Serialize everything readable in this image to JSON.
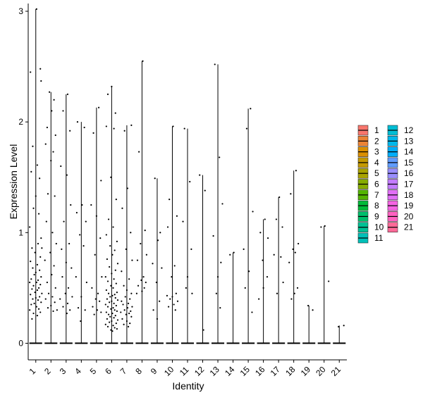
{
  "chart_data": {
    "type": "violin",
    "xlabel": "Identity",
    "ylabel": "Expression Level",
    "categories": [
      "1",
      "2",
      "3",
      "4",
      "5",
      "6",
      "7",
      "8",
      "9",
      "10",
      "11",
      "12",
      "13",
      "14",
      "15",
      "16",
      "17",
      "18",
      "19",
      "20",
      "21"
    ],
    "ylim": [
      -0.15,
      3.07
    ],
    "yticks": [
      0,
      1,
      2,
      3
    ],
    "grid": false,
    "legend_position": "right",
    "legend_columns": 2,
    "colors": [
      "#F8766D",
      "#EB8335",
      "#DA8F00",
      "#C49A00",
      "#A9A400",
      "#86AC00",
      "#53B400",
      "#00BA38",
      "#00BE6C",
      "#00C094",
      "#00C0B8",
      "#00BDD4",
      "#00B7EB",
      "#00ADFA",
      "#619CFF",
      "#9A8EFF",
      "#C37CFF",
      "#E16EF7",
      "#F564E3",
      "#FF62C1",
      "#FF6A98"
    ],
    "max_values": [
      3.02,
      2.27,
      2.25,
      2.0,
      2.13,
      2.32,
      1.97,
      2.55,
      1.49,
      1.96,
      1.94,
      1.52,
      2.52,
      0.82,
      2.12,
      1.12,
      1.32,
      1.56,
      0.34,
      1.06,
      0.16
    ],
    "points": [
      [
        [
          0.05,
          3.02
        ],
        [
          0.3,
          2.48
        ],
        [
          -0.35,
          2.45
        ],
        [
          0.35,
          2.37
        ],
        [
          -0.2,
          1.78
        ],
        [
          0.1,
          1.61
        ],
        [
          -0.3,
          1.55
        ],
        [
          0.25,
          1.49
        ],
        [
          0.0,
          1.33
        ],
        [
          -0.15,
          1.22
        ],
        [
          0.2,
          1.17
        ],
        [
          -0.4,
          1.05
        ],
        [
          0.35,
          0.95
        ],
        [
          0.15,
          0.9
        ],
        [
          -0.25,
          0.86
        ],
        [
          0.4,
          0.86
        ],
        [
          -0.05,
          0.82
        ],
        [
          0.3,
          0.78
        ],
        [
          -0.35,
          0.74
        ],
        [
          0.1,
          0.71
        ],
        [
          -0.2,
          0.68
        ],
        [
          0.25,
          0.66
        ],
        [
          0.0,
          0.64
        ],
        [
          -0.1,
          0.62
        ],
        [
          0.35,
          0.6
        ],
        [
          -0.3,
          0.58
        ],
        [
          0.15,
          0.57
        ],
        [
          0.05,
          0.55
        ],
        [
          -0.4,
          0.55
        ],
        [
          0.3,
          0.53
        ],
        [
          -0.15,
          0.52
        ],
        [
          0.2,
          0.5
        ],
        [
          -0.25,
          0.49
        ],
        [
          0.1,
          0.48
        ],
        [
          -0.05,
          0.46
        ],
        [
          0.4,
          0.45
        ],
        [
          -0.35,
          0.44
        ],
        [
          0.25,
          0.42
        ],
        [
          0.0,
          0.41
        ],
        [
          -0.2,
          0.4
        ],
        [
          0.15,
          0.39
        ],
        [
          0.35,
          0.37
        ],
        [
          -0.1,
          0.36
        ],
        [
          -0.3,
          0.35
        ],
        [
          0.05,
          0.33
        ],
        [
          0.2,
          0.31
        ],
        [
          -0.4,
          0.3
        ],
        [
          0.3,
          0.28
        ],
        [
          -0.15,
          0.27
        ],
        [
          0.1,
          0.25
        ],
        [
          -0.25,
          0.22
        ]
      ],
      [
        [
          -0.1,
          2.27
        ],
        [
          0.2,
          2.2
        ],
        [
          0.05,
          2.1
        ],
        [
          -0.25,
          1.95
        ],
        [
          0.3,
          1.88
        ],
        [
          -0.35,
          1.8
        ],
        [
          0.15,
          1.73
        ],
        [
          0.0,
          1.65
        ],
        [
          -0.2,
          1.35
        ],
        [
          0.25,
          1.33
        ],
        [
          -0.3,
          1.1
        ],
        [
          0.1,
          1.0
        ],
        [
          0.35,
          0.9
        ],
        [
          -0.05,
          0.82
        ],
        [
          -0.4,
          0.75
        ],
        [
          0.2,
          0.7
        ],
        [
          0.05,
          0.62
        ],
        [
          -0.25,
          0.55
        ],
        [
          0.3,
          0.5
        ],
        [
          -0.15,
          0.45
        ],
        [
          0.1,
          0.42
        ],
        [
          -0.35,
          0.4
        ],
        [
          0.25,
          0.37
        ],
        [
          0.0,
          0.34
        ],
        [
          -0.2,
          0.32
        ],
        [
          0.4,
          0.3
        ],
        [
          0.15,
          0.29
        ]
      ],
      [
        [
          0.1,
          2.25
        ],
        [
          -0.2,
          2.1
        ],
        [
          0.25,
          1.92
        ],
        [
          -0.35,
          1.6
        ],
        [
          0.05,
          1.52
        ],
        [
          0.3,
          1.25
        ],
        [
          -0.15,
          1.1
        ],
        [
          0.2,
          0.9
        ],
        [
          -0.3,
          0.85
        ],
        [
          0.0,
          0.73
        ],
        [
          0.35,
          0.68
        ],
        [
          -0.25,
          0.6
        ],
        [
          0.15,
          0.5
        ],
        [
          -0.05,
          0.45
        ],
        [
          0.4,
          0.42
        ],
        [
          -0.4,
          0.4
        ],
        [
          0.1,
          0.36
        ],
        [
          -0.2,
          0.33
        ],
        [
          0.25,
          0.3
        ],
        [
          0.05,
          0.27
        ]
      ],
      [
        [
          -0.25,
          2.0
        ],
        [
          0.2,
          1.95
        ],
        [
          0.05,
          1.25
        ],
        [
          -0.3,
          1.18
        ],
        [
          0.3,
          1.1
        ],
        [
          -0.1,
          0.98
        ],
        [
          0.15,
          0.88
        ],
        [
          -0.35,
          0.6
        ],
        [
          0.35,
          0.55
        ],
        [
          0.0,
          0.42
        ],
        [
          -0.2,
          0.32
        ],
        [
          0.25,
          0.3
        ],
        [
          -0.05,
          0.2
        ]
      ],
      [
        [
          0.15,
          2.13
        ],
        [
          -0.2,
          1.9
        ],
        [
          0.3,
          1.47
        ],
        [
          -0.35,
          1.25
        ],
        [
          0.0,
          1.15
        ],
        [
          0.25,
          0.95
        ],
        [
          -0.1,
          0.8
        ],
        [
          0.35,
          0.6
        ],
        [
          -0.3,
          0.5
        ],
        [
          0.1,
          0.45
        ],
        [
          -0.05,
          0.4
        ],
        [
          0.2,
          0.38
        ],
        [
          -0.25,
          0.33
        ],
        [
          0.05,
          0.3
        ],
        [
          0.3,
          0.28
        ],
        [
          -0.15,
          0.26
        ]
      ],
      [
        [
          0.0,
          2.32
        ],
        [
          -0.25,
          2.25
        ],
        [
          0.25,
          2.08
        ],
        [
          -0.35,
          1.96
        ],
        [
          0.15,
          1.94
        ],
        [
          -0.05,
          1.5
        ],
        [
          0.3,
          1.3
        ],
        [
          -0.2,
          1.12
        ],
        [
          0.1,
          1.05
        ],
        [
          -0.35,
          0.98
        ],
        [
          0.35,
          0.92
        ],
        [
          -0.1,
          0.88
        ],
        [
          0.2,
          0.84
        ],
        [
          0.05,
          0.8
        ],
        [
          -0.3,
          0.76
        ],
        [
          0.4,
          0.72
        ],
        [
          -0.15,
          0.69
        ],
        [
          0.25,
          0.66
        ],
        [
          0.0,
          0.63
        ],
        [
          -0.4,
          0.6
        ],
        [
          0.15,
          0.58
        ],
        [
          -0.25,
          0.56
        ],
        [
          0.3,
          0.54
        ],
        [
          -0.05,
          0.52
        ],
        [
          0.1,
          0.5
        ],
        [
          -0.35,
          0.48
        ],
        [
          0.35,
          0.46
        ],
        [
          -0.2,
          0.45
        ],
        [
          0.2,
          0.44
        ],
        [
          0.05,
          0.43
        ],
        [
          -0.1,
          0.42
        ],
        [
          0.25,
          0.41
        ],
        [
          -0.3,
          0.4
        ],
        [
          0.4,
          0.39
        ],
        [
          0.0,
          0.38
        ],
        [
          -0.15,
          0.37
        ],
        [
          0.15,
          0.36
        ],
        [
          -0.4,
          0.35
        ],
        [
          0.3,
          0.34
        ],
        [
          -0.25,
          0.33
        ],
        [
          0.1,
          0.32
        ],
        [
          -0.05,
          0.31
        ],
        [
          0.2,
          0.3
        ],
        [
          0.35,
          0.29
        ],
        [
          -0.35,
          0.28
        ],
        [
          0.05,
          0.27
        ],
        [
          -0.2,
          0.26
        ],
        [
          0.25,
          0.25
        ],
        [
          -0.1,
          0.24
        ],
        [
          0.15,
          0.23
        ],
        [
          -0.3,
          0.22
        ],
        [
          0.4,
          0.21
        ],
        [
          0.0,
          0.2
        ],
        [
          -0.15,
          0.19
        ],
        [
          0.3,
          0.18
        ],
        [
          -0.4,
          0.17
        ],
        [
          0.1,
          0.16
        ],
        [
          -0.25,
          0.15
        ],
        [
          0.2,
          0.14
        ],
        [
          0.35,
          0.13
        ],
        [
          -0.05,
          0.12
        ],
        [
          0.05,
          0.11
        ]
      ],
      [
        [
          0.3,
          1.97
        ],
        [
          -0.15,
          1.92
        ],
        [
          0.05,
          1.4
        ],
        [
          -0.3,
          1.22
        ],
        [
          0.25,
          1.0
        ],
        [
          -0.05,
          0.85
        ],
        [
          0.35,
          0.75
        ],
        [
          -0.35,
          0.65
        ],
        [
          0.15,
          0.58
        ],
        [
          -0.2,
          0.52
        ],
        [
          0.0,
          0.48
        ],
        [
          0.3,
          0.45
        ],
        [
          -0.1,
          0.42
        ],
        [
          0.2,
          0.4
        ],
        [
          -0.35,
          0.38
        ],
        [
          0.1,
          0.36
        ],
        [
          -0.25,
          0.35
        ],
        [
          0.35,
          0.33
        ],
        [
          0.05,
          0.32
        ],
        [
          -0.15,
          0.3
        ],
        [
          0.25,
          0.29
        ],
        [
          -0.4,
          0.28
        ],
        [
          0.15,
          0.27
        ],
        [
          -0.05,
          0.26
        ],
        [
          0.3,
          0.24
        ],
        [
          -0.3,
          0.22
        ],
        [
          0.0,
          0.2
        ],
        [
          0.2,
          0.18
        ],
        [
          -0.2,
          0.17
        ],
        [
          0.1,
          0.15
        ]
      ],
      [
        [
          0.05,
          2.55
        ],
        [
          -0.2,
          1.73
        ],
        [
          0.2,
          1.02
        ],
        [
          -0.1,
          0.9
        ],
        [
          0.3,
          0.8
        ],
        [
          -0.3,
          0.75
        ],
        [
          0.1,
          0.6
        ],
        [
          -0.05,
          0.57
        ],
        [
          0.25,
          0.55
        ],
        [
          -0.25,
          0.52
        ],
        [
          0.15,
          0.5
        ],
        [
          0.0,
          0.47
        ],
        [
          -0.35,
          0.45
        ]
      ],
      [
        [
          -0.15,
          1.49
        ],
        [
          0.2,
          1.0
        ],
        [
          0.05,
          0.93
        ],
        [
          -0.3,
          0.72
        ],
        [
          0.3,
          0.68
        ],
        [
          -0.05,
          0.55
        ],
        [
          0.15,
          0.38
        ],
        [
          -0.25,
          0.3
        ],
        [
          0.0,
          0.22
        ]
      ],
      [
        [
          0.05,
          1.96
        ],
        [
          -0.2,
          1.3
        ],
        [
          0.3,
          1.15
        ],
        [
          -0.3,
          1.05
        ],
        [
          0.15,
          0.7
        ],
        [
          -0.05,
          0.6
        ],
        [
          0.25,
          0.45
        ],
        [
          -0.35,
          0.43
        ],
        [
          0.0,
          0.42
        ],
        [
          -0.15,
          0.4
        ],
        [
          0.35,
          0.38
        ],
        [
          0.1,
          0.35
        ],
        [
          -0.25,
          0.33
        ],
        [
          0.2,
          0.3
        ]
      ],
      [
        [
          -0.2,
          1.94
        ],
        [
          0.15,
          1.46
        ],
        [
          -0.3,
          1.1
        ],
        [
          0.25,
          0.85
        ],
        [
          0.0,
          0.6
        ],
        [
          -0.1,
          0.5
        ],
        [
          0.3,
          0.45
        ]
      ],
      [
        [
          -0.2,
          1.52
        ],
        [
          0.15,
          1.38
        ],
        [
          0.05,
          0.12
        ]
      ],
      [
        [
          -0.2,
          2.52
        ],
        [
          0.1,
          1.68
        ],
        [
          0.3,
          1.26
        ],
        [
          -0.3,
          0.97
        ],
        [
          0.2,
          0.73
        ],
        [
          0.0,
          0.6
        ],
        [
          -0.1,
          0.45
        ],
        [
          0.15,
          0.32
        ]
      ],
      [
        [
          0.05,
          0.82
        ],
        [
          -0.2,
          0.8
        ]
      ],
      [
        [
          0.15,
          2.12
        ],
        [
          -0.1,
          1.94
        ],
        [
          0.3,
          1.19
        ],
        [
          -0.3,
          0.85
        ],
        [
          0.05,
          0.65
        ],
        [
          -0.2,
          0.5
        ],
        [
          0.25,
          0.28
        ]
      ],
      [
        [
          0.1,
          1.12
        ],
        [
          -0.2,
          1.0
        ],
        [
          0.3,
          0.95
        ],
        [
          -0.05,
          0.75
        ],
        [
          0.25,
          0.6
        ],
        [
          0.0,
          0.5
        ],
        [
          -0.3,
          0.4
        ]
      ],
      [
        [
          0.05,
          1.32
        ],
        [
          -0.15,
          1.12
        ],
        [
          0.25,
          1.05
        ],
        [
          -0.3,
          0.8
        ],
        [
          0.15,
          0.78
        ],
        [
          0.3,
          0.55
        ],
        [
          -0.1,
          0.45
        ]
      ],
      [
        [
          0.15,
          1.56
        ],
        [
          -0.2,
          1.35
        ],
        [
          0.3,
          0.9
        ],
        [
          -0.05,
          0.85
        ],
        [
          0.1,
          0.82
        ],
        [
          -0.3,
          0.73
        ],
        [
          0.25,
          0.5
        ],
        [
          0.05,
          0.45
        ],
        [
          -0.15,
          0.4
        ]
      ],
      [
        [
          -0.05,
          0.34
        ],
        [
          0.25,
          0.3
        ]
      ],
      [
        [
          0.05,
          1.06
        ],
        [
          -0.2,
          1.05
        ],
        [
          0.3,
          0.56
        ]
      ],
      [
        [
          0.3,
          0.16
        ],
        [
          -0.05,
          0.15
        ]
      ]
    ]
  }
}
